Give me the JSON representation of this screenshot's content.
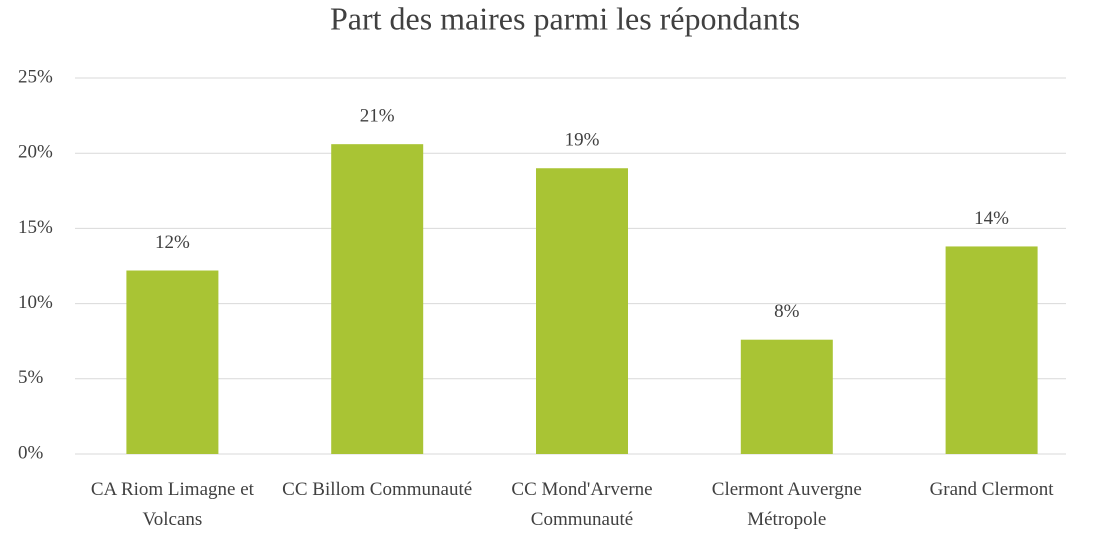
{
  "chart_data": {
    "type": "bar",
    "title": "Part des maires parmi les répondants",
    "categories": [
      "CA Riom Limagne et Volcans",
      "CC Billom Communauté",
      "CC Mond'Arverne Communauté",
      "Clermont Auvergne Métropole",
      "Grand Clermont"
    ],
    "values": [
      12.2,
      20.6,
      19.0,
      7.6,
      13.8
    ],
    "value_labels": [
      "12%",
      "21%",
      "19%",
      "8%",
      "14%"
    ],
    "color": "#a9c434",
    "ylim": [
      0,
      25
    ],
    "yticks": [
      {
        "value": 0,
        "label": "0%"
      },
      {
        "value": 5,
        "label": "5%"
      },
      {
        "value": 10,
        "label": "10%"
      },
      {
        "value": 15,
        "label": "15%"
      },
      {
        "value": 20,
        "label": "20%"
      },
      {
        "value": 25,
        "label": "25%"
      }
    ],
    "grid": true
  }
}
